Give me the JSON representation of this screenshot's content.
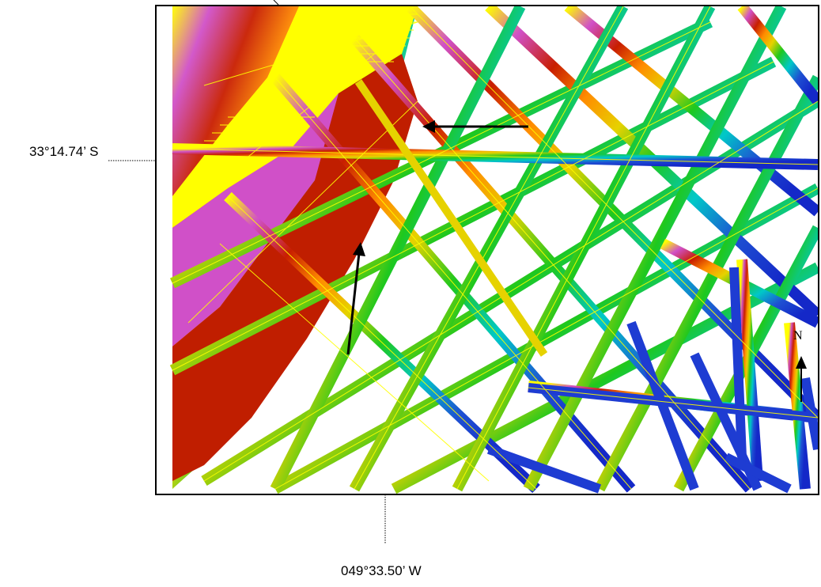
{
  "map": {
    "latitude_label": "33°14.74’ S",
    "longitude_label": "049°33.50’ W",
    "north_label": "N"
  },
  "colors": {
    "ramp": [
      "#ffff00",
      "#cc55cc",
      "#c81e00",
      "#ff8c00",
      "#e6d200",
      "#1ec81e",
      "#00c8c8",
      "#1e50d2",
      "#1428c8"
    ],
    "track_overlay": "#ffff00",
    "arrows": "#000000"
  },
  "icons": {
    "north_arrow": "north-arrow-icon",
    "annotation_arrows": "arrow-icon"
  }
}
